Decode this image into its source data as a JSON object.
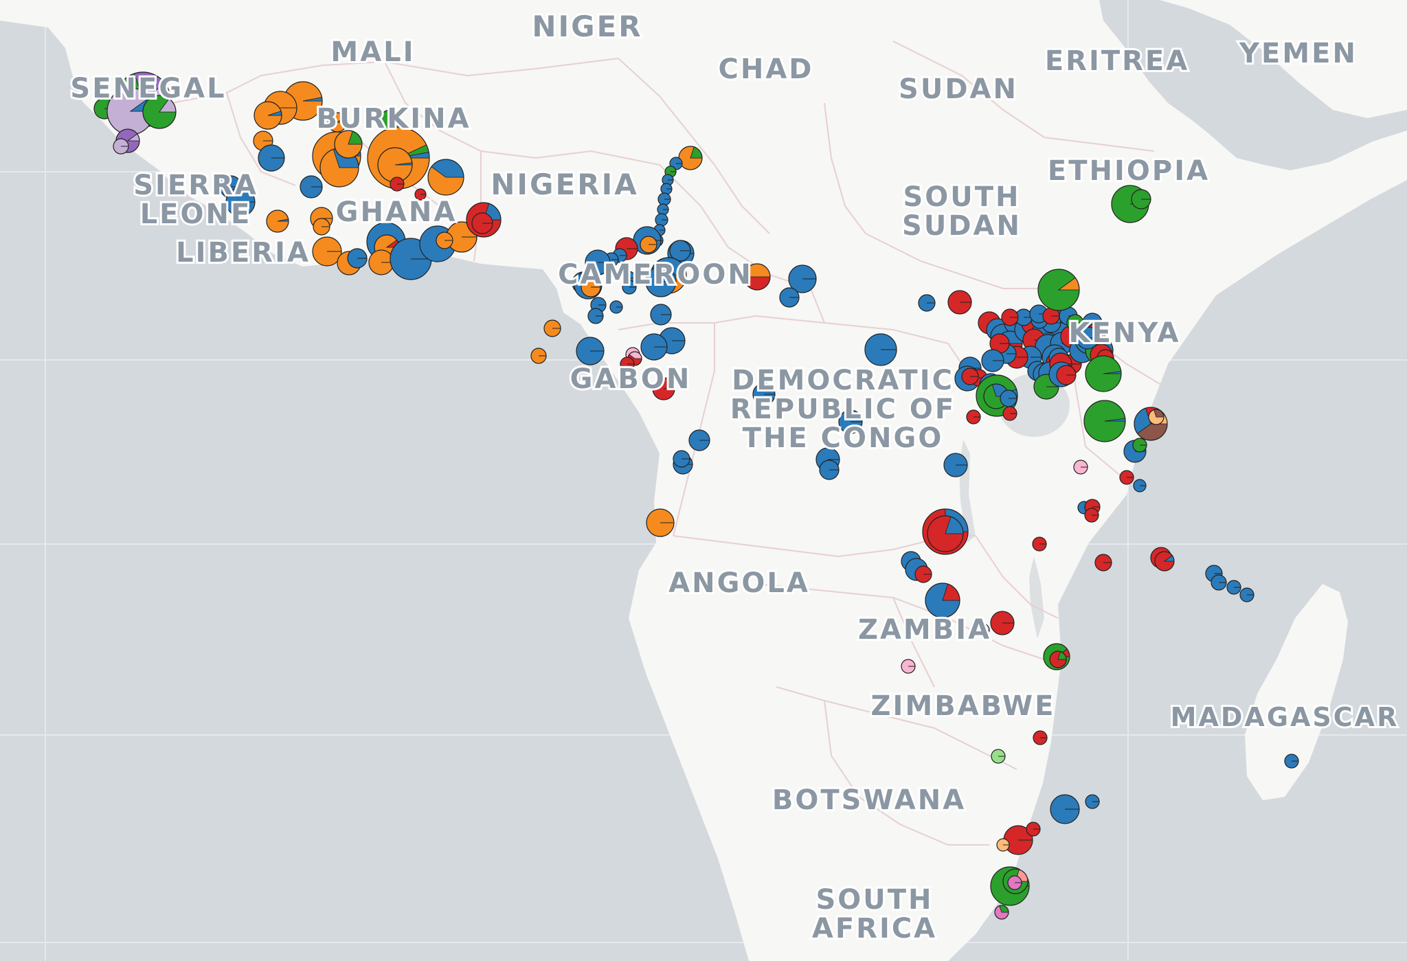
{
  "map": {
    "colors": {
      "ocean": "#d4d9dd",
      "land": "#f7f7f5",
      "border": "#e7cfd3",
      "graticule": "#e6e9ec",
      "label": "#8b97a3",
      "marker_outline": "#222222"
    },
    "country_labels": [
      {
        "id": "senegal",
        "lines": [
          "SENEGAL"
        ]
      },
      {
        "id": "mali",
        "lines": [
          "MALI"
        ]
      },
      {
        "id": "niger",
        "lines": [
          "NIGER"
        ]
      },
      {
        "id": "chad",
        "lines": [
          "CHAD"
        ]
      },
      {
        "id": "sudan",
        "lines": [
          "SUDAN"
        ]
      },
      {
        "id": "eritrea",
        "lines": [
          "ERITREA"
        ]
      },
      {
        "id": "yemen",
        "lines": [
          "YEMEN"
        ]
      },
      {
        "id": "burkina",
        "lines": [
          "BURKINA"
        ]
      },
      {
        "id": "ethiopia",
        "lines": [
          "ETHIOPIA"
        ]
      },
      {
        "id": "sierra-leone",
        "lines": [
          "SIERRA",
          "LEONE"
        ]
      },
      {
        "id": "nigeria",
        "lines": [
          "NIGERIA"
        ]
      },
      {
        "id": "south-sudan",
        "lines": [
          "SOUTH",
          "SUDAN"
        ]
      },
      {
        "id": "ghana",
        "lines": [
          "GHANA"
        ]
      },
      {
        "id": "liberia",
        "lines": [
          "LIBERIA"
        ]
      },
      {
        "id": "cameroon",
        "lines": [
          "CAMEROON"
        ]
      },
      {
        "id": "kenya",
        "lines": [
          "KENYA"
        ]
      },
      {
        "id": "gabon",
        "lines": [
          "GABON"
        ]
      },
      {
        "id": "drc",
        "lines": [
          "DEMOCRATIC",
          "REPUBLIC OF",
          "THE CONGO"
        ]
      },
      {
        "id": "angola",
        "lines": [
          "ANGOLA"
        ]
      },
      {
        "id": "zambia",
        "lines": [
          "ZAMBIA"
        ]
      },
      {
        "id": "zimbabwe",
        "lines": [
          "ZIMBABWE"
        ]
      },
      {
        "id": "madagascar",
        "lines": [
          "MADAGASCAR"
        ]
      },
      {
        "id": "botswana",
        "lines": [
          "BOTSWANA"
        ]
      },
      {
        "id": "south-africa",
        "lines": [
          "SOUTH",
          "AFRICA"
        ]
      }
    ],
    "category_colors": {
      "blue": "#2b7bba",
      "orange": "#f58b1f",
      "green": "#2ca02c",
      "red": "#d62728",
      "purple": "#9467bd",
      "lavender": "#c5b0d5",
      "pink": "#f7b6d2",
      "light-green": "#98df8a",
      "light-orange": "#ffbb78",
      "brown": "#8c564b",
      "magenta": "#e377c2",
      "light-red": "#ff9896"
    }
  }
}
